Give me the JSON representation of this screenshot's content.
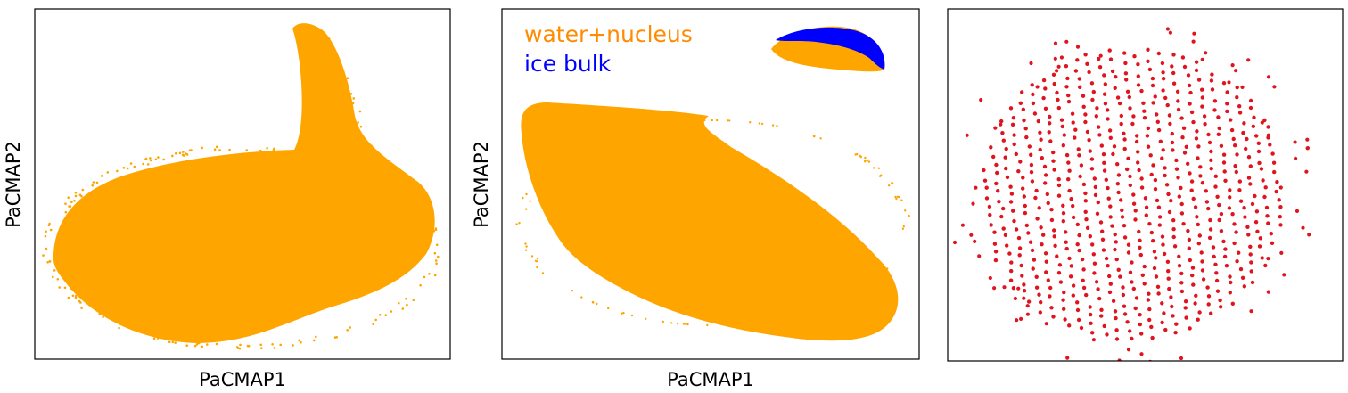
{
  "chart_data": [
    {
      "type": "scatter",
      "xlabel": "PaCMAP1",
      "ylabel": "PaCMAP2",
      "ticks": "none",
      "grid": false,
      "series": [
        {
          "color": "#ffa500",
          "shape": "dense-blob-with-upper-right-arm"
        }
      ]
    },
    {
      "type": "scatter",
      "xlabel": "PaCMAP1",
      "ylabel": "PaCMAP2",
      "ticks": "none",
      "grid": false,
      "legend_placement": "top-left",
      "series": [
        {
          "name": "water+nucleus",
          "color": "#ff8c00",
          "point_color": "#ffa500",
          "shape": "large-diagonal-blob-plus-small-upper-right-crescent"
        },
        {
          "name": "ice bulk",
          "color": "#0000ff",
          "shape": "upper-edge-of-small-upper-right-crescent"
        }
      ]
    },
    {
      "type": "scatter",
      "xlabel": "",
      "ylabel": "",
      "ticks": "none",
      "grid": false,
      "series": [
        {
          "color": "#e0141e",
          "shape": "circular-lattice-of-points"
        }
      ]
    }
  ]
}
